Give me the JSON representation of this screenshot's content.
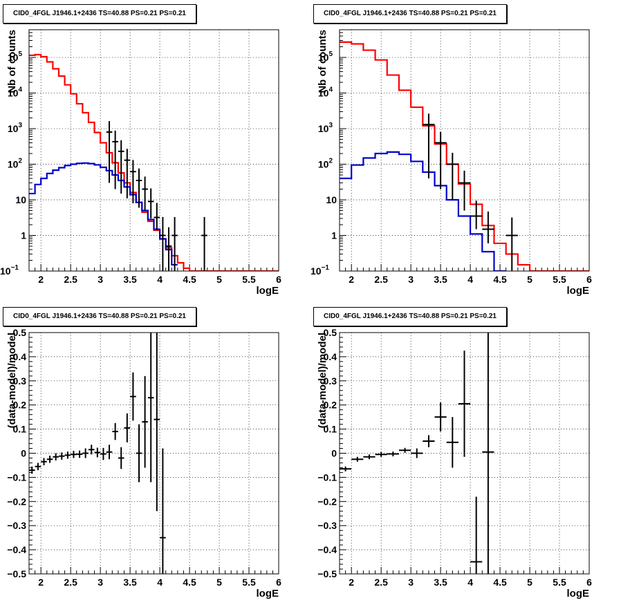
{
  "chart_data": [
    {
      "type": "step-histogram",
      "title": "CID0_4FGL J1946.1+2436 TS=40.88 PS=0.21 PS=0.21",
      "xlabel": "logE",
      "ylabel": "Nb of counts",
      "yscale": "log",
      "xlim": [
        1.8,
        6.0
      ],
      "ylim": [
        0.1,
        600000
      ],
      "xticks": [
        "2",
        "2.5",
        "3",
        "3.5",
        "4",
        "4.5",
        "5",
        "5.5",
        "6"
      ],
      "yticks": [
        {
          "v": 0.1,
          "label": "10",
          "exp": "−1"
        },
        {
          "v": 1,
          "label": "1",
          "exp": ""
        },
        {
          "v": 10,
          "label": "10",
          "exp": ""
        },
        {
          "v": 100,
          "label": "10",
          "exp": "2"
        },
        {
          "v": 1000,
          "label": "10",
          "exp": "3"
        },
        {
          "v": 10000,
          "label": "10",
          "exp": "4"
        },
        {
          "v": 100000,
          "label": "10",
          "exp": "5"
        }
      ],
      "grid": true,
      "binwidth": 0.1,
      "series": [
        {
          "color": "#ff0000",
          "x": [
            1.85,
            1.95,
            2.05,
            2.15,
            2.25,
            2.35,
            2.45,
            2.55,
            2.65,
            2.75,
            2.85,
            2.95,
            3.05,
            3.15,
            3.25,
            3.35,
            3.45,
            3.55,
            3.65,
            3.75,
            3.85,
            3.95,
            4.05,
            4.15,
            4.25,
            4.35,
            4.45,
            4.55,
            4.65,
            4.75,
            4.85,
            4.95,
            5.05,
            5.15,
            5.25,
            5.35,
            5.45,
            5.55,
            5.65,
            5.75,
            5.85,
            5.95
          ],
          "values": [
            115000,
            120000,
            105000,
            75000,
            48000,
            30000,
            17000,
            9500,
            5000,
            2800,
            1500,
            780,
            400,
            210,
            110,
            57,
            30,
            16,
            8.5,
            4.5,
            2.5,
            1.4,
            0.8,
            0.45,
            0.27,
            0.17,
            0.12,
            0.1,
            0.1,
            0.1,
            0.1,
            0.1,
            0.1,
            0.1,
            0.1,
            0.1,
            0.1,
            0.1,
            0.1,
            0.1,
            0.1,
            0.1
          ]
        },
        {
          "color": "#0000cc",
          "x": [
            1.85,
            1.95,
            2.05,
            2.15,
            2.25,
            2.35,
            2.45,
            2.55,
            2.65,
            2.75,
            2.85,
            2.95,
            3.05,
            3.15,
            3.25,
            3.35,
            3.45,
            3.55,
            3.65,
            3.75,
            3.85,
            3.95,
            4.05,
            4.15,
            4.25
          ],
          "values": [
            15,
            27,
            40,
            55,
            68,
            80,
            92,
            100,
            106,
            108,
            104,
            96,
            82,
            66,
            50,
            35,
            23,
            14,
            8.5,
            5,
            2.8,
            1.5,
            0.8,
            0.4,
            0.15
          ]
        }
      ],
      "points": {
        "x": [
          3.15,
          3.25,
          3.35,
          3.45,
          3.55,
          3.65,
          3.75,
          3.85,
          3.95,
          4.05,
          4.15,
          4.25,
          4.75
        ],
        "y": [
          800,
          430,
          230,
          130,
          62,
          35,
          20,
          9,
          3.2,
          1,
          0.5,
          1,
          1
        ],
        "err_low": [
          770,
          410,
          215,
          119,
          54,
          29,
          15,
          6,
          1.8,
          0.9,
          0.48,
          0.9,
          0.9
        ],
        "err_high": [
          830,
          450,
          245,
          141,
          70,
          41,
          25,
          12,
          5,
          2.3,
          1.2,
          2.3,
          2.3
        ]
      }
    },
    {
      "type": "step-histogram",
      "title": "CID0_4FGL J1946.1+2436 TS=40.88 PS=0.21 PS=0.21",
      "xlabel": "logE",
      "ylabel": "Nb of counts",
      "yscale": "log",
      "xlim": [
        1.8,
        6.0
      ],
      "ylim": [
        0.1,
        600000
      ],
      "xticks": [
        "2",
        "2.5",
        "3",
        "3.5",
        "4",
        "4.5",
        "5",
        "5.5",
        "6"
      ],
      "yticks": [
        {
          "v": 0.1,
          "label": "10",
          "exp": "−1"
        },
        {
          "v": 1,
          "label": "1",
          "exp": ""
        },
        {
          "v": 10,
          "label": "10",
          "exp": ""
        },
        {
          "v": 100,
          "label": "10",
          "exp": "2"
        },
        {
          "v": 1000,
          "label": "10",
          "exp": "3"
        },
        {
          "v": 10000,
          "label": "10",
          "exp": "4"
        },
        {
          "v": 100000,
          "label": "10",
          "exp": "5"
        }
      ],
      "grid": true,
      "binwidth": 0.2,
      "series": [
        {
          "color": "#ff0000",
          "x": [
            1.9,
            2.1,
            2.3,
            2.5,
            2.7,
            2.9,
            3.1,
            3.3,
            3.5,
            3.7,
            3.9,
            4.1,
            4.3,
            4.5,
            4.7,
            4.9,
            5.1,
            5.3,
            5.5,
            5.7,
            5.9
          ],
          "values": [
            270000,
            240000,
            160000,
            85000,
            32000,
            12000,
            4000,
            1200,
            370,
            100,
            28,
            7.5,
            1.9,
            0.6,
            0.3,
            0.15,
            0.1,
            0.1,
            0.1,
            0.1,
            0.1
          ]
        },
        {
          "color": "#0000cc",
          "x": [
            1.9,
            2.1,
            2.3,
            2.5,
            2.7,
            2.9,
            3.1,
            3.3,
            3.5,
            3.7,
            3.9,
            4.1,
            4.3,
            4.5
          ],
          "values": [
            40,
            95,
            150,
            200,
            220,
            190,
            120,
            60,
            25,
            10,
            3.5,
            1.1,
            0.35,
            0.1
          ]
        }
      ],
      "points": {
        "x": [
          3.3,
          3.5,
          3.7,
          3.9,
          4.1,
          4.3,
          4.7
        ],
        "y": [
          1300,
          400,
          100,
          30,
          3.5,
          1.5,
          1
        ],
        "err_low": [
          1260,
          380,
          90,
          25,
          2,
          0.9,
          0.9
        ],
        "err_high": [
          1340,
          420,
          110,
          36,
          6,
          3.2,
          2.2
        ]
      }
    },
    {
      "type": "scatter-errorbars",
      "title": "CID0_4FGL J1946.1+2436 TS=40.88 PS=0.21 PS=0.21",
      "xlabel": "logE",
      "ylabel": "(data-model)/model",
      "xlim": [
        1.8,
        6.0
      ],
      "ylim": [
        -0.5,
        0.5
      ],
      "xticks": [
        "2",
        "2.5",
        "3",
        "3.5",
        "4",
        "4.5",
        "5",
        "5.5",
        "6"
      ],
      "yticks": [
        "−0.5",
        "−0.4",
        "−0.3",
        "−0.2",
        "−0.1",
        "0",
        "0.1",
        "0.2",
        "0.3",
        "0.4",
        "0.5"
      ],
      "grid": true,
      "binwidth": 0.1,
      "points": {
        "x": [
          1.85,
          1.95,
          2.05,
          2.15,
          2.25,
          2.35,
          2.45,
          2.55,
          2.65,
          2.75,
          2.85,
          2.95,
          3.05,
          3.15,
          3.25,
          3.35,
          3.45,
          3.55,
          3.65,
          3.75,
          3.85,
          3.95,
          4.05
        ],
        "y": [
          -0.07,
          -0.055,
          -0.035,
          -0.025,
          -0.015,
          -0.012,
          -0.008,
          -0.005,
          -0.004,
          0.0,
          0.015,
          0.003,
          -0.003,
          0.005,
          0.09,
          -0.02,
          0.105,
          0.235,
          0.0,
          0.13,
          0.23,
          0.14,
          -0.35
        ],
        "err": [
          0.015,
          0.015,
          0.015,
          0.015,
          0.015,
          0.015,
          0.015,
          0.015,
          0.015,
          0.02,
          0.02,
          0.02,
          0.025,
          0.03,
          0.035,
          0.045,
          0.06,
          0.1,
          0.12,
          0.19,
          0.35,
          0.38,
          0.37
        ]
      }
    },
    {
      "type": "scatter-errorbars",
      "title": "CID0_4FGL J1946.1+2436 TS=40.88 PS=0.21 PS=0.21",
      "xlabel": "logE",
      "ylabel": "(data-model)/model",
      "xlim": [
        1.8,
        6.0
      ],
      "ylim": [
        -0.5,
        0.5
      ],
      "xticks": [
        "2",
        "2.5",
        "3",
        "3.5",
        "4",
        "4.5",
        "5",
        "5.5",
        "6"
      ],
      "yticks": [
        "−0.5",
        "−0.4",
        "−0.3",
        "−0.2",
        "−0.1",
        "0",
        "0.1",
        "0.2",
        "0.3",
        "0.4",
        "0.5"
      ],
      "grid": true,
      "binwidth": 0.2,
      "points": {
        "x": [
          1.9,
          2.1,
          2.3,
          2.5,
          2.7,
          2.9,
          3.1,
          3.3,
          3.5,
          3.7,
          3.9,
          4.1,
          4.3
        ],
        "y": [
          -0.065,
          -0.025,
          -0.015,
          -0.005,
          -0.003,
          0.012,
          0.0,
          0.05,
          0.15,
          0.045,
          0.205,
          -0.45,
          0.005
        ],
        "err": [
          0.01,
          0.01,
          0.01,
          0.01,
          0.01,
          0.01,
          0.02,
          0.025,
          0.06,
          0.105,
          0.22,
          0.27,
          0.55
        ]
      }
    }
  ]
}
